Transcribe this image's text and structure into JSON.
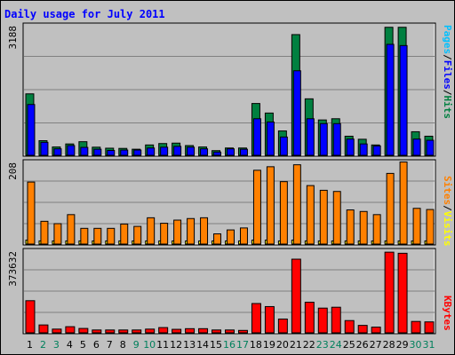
{
  "title": "Daily usage for July 2011",
  "chart_data": [
    {
      "type": "bar",
      "panel": "hits-files-pages",
      "ymax_label": "3188",
      "ylim": [
        0,
        3188
      ],
      "categories": [
        "1",
        "2",
        "3",
        "4",
        "5",
        "6",
        "7",
        "8",
        "9",
        "10",
        "11",
        "12",
        "13",
        "14",
        "15",
        "16",
        "17",
        "18",
        "19",
        "20",
        "21",
        "22",
        "23",
        "24",
        "25",
        "26",
        "27",
        "28",
        "29",
        "30",
        "31"
      ],
      "series": [
        {
          "name": "Hits",
          "color": "#008040",
          "values": [
            1512,
            360,
            205,
            280,
            335,
            200,
            175,
            170,
            150,
            255,
            290,
            300,
            240,
            205,
            115,
            180,
            180,
            1275,
            1040,
            600,
            2970,
            1390,
            870,
            900,
            470,
            395,
            255,
            3150,
            3150,
            580,
            470
          ]
        },
        {
          "name": "Files",
          "color": "#0000ff",
          "values": [
            1250,
            320,
            160,
            240,
            195,
            150,
            120,
            130,
            130,
            180,
            200,
            220,
            200,
            160,
            80,
            160,
            150,
            900,
            820,
            450,
            2080,
            900,
            780,
            780,
            400,
            280,
            230,
            2730,
            2700,
            400,
            370
          ]
        },
        {
          "name": "Pages",
          "color": "#00c0ff",
          "values": [
            0,
            0,
            0,
            0,
            0,
            0,
            0,
            0,
            0,
            0,
            0,
            0,
            0,
            0,
            0,
            0,
            0,
            0,
            0,
            0,
            0,
            0,
            0,
            0,
            0,
            0,
            0,
            0,
            0,
            0,
            0
          ]
        }
      ]
    },
    {
      "type": "bar",
      "panel": "visits-sites",
      "ymax_label": "208",
      "ylim": [
        0,
        208
      ],
      "categories": [
        "1",
        "2",
        "3",
        "4",
        "5",
        "6",
        "7",
        "8",
        "9",
        "10",
        "11",
        "12",
        "13",
        "14",
        "15",
        "16",
        "17",
        "18",
        "19",
        "20",
        "21",
        "22",
        "23",
        "24",
        "25",
        "26",
        "27",
        "28",
        "29",
        "30",
        "31"
      ],
      "series": [
        {
          "name": "Visits",
          "color": "#ffff00",
          "values": [
            10,
            8,
            8,
            8,
            8,
            8,
            8,
            8,
            8,
            8,
            8,
            8,
            8,
            8,
            8,
            8,
            8,
            10,
            10,
            8,
            10,
            8,
            8,
            8,
            8,
            8,
            8,
            8,
            8,
            8,
            8
          ]
        },
        {
          "name": "Sites",
          "color": "#ff8000",
          "values": [
            158,
            58,
            52,
            75,
            40,
            40,
            40,
            51,
            45,
            67,
            53,
            61,
            65,
            67,
            26,
            36,
            41,
            188,
            197,
            159,
            202,
            149,
            137,
            134,
            87,
            83,
            75,
            180,
            209,
            91,
            88
          ]
        }
      ]
    },
    {
      "type": "bar",
      "panel": "kbytes",
      "ymax_label": "373632",
      "ylim": [
        0,
        373632
      ],
      "categories": [
        "1",
        "2",
        "3",
        "4",
        "5",
        "6",
        "7",
        "8",
        "9",
        "10",
        "11",
        "12",
        "13",
        "14",
        "15",
        "16",
        "17",
        "18",
        "19",
        "20",
        "21",
        "22",
        "23",
        "24",
        "25",
        "26",
        "27",
        "28",
        "29",
        "30",
        "31"
      ],
      "series": [
        {
          "name": "KBytes",
          "color": "#ff0000",
          "values": [
            147000,
            36000,
            17000,
            28000,
            20000,
            13000,
            13000,
            13000,
            13000,
            17000,
            24000,
            16000,
            19000,
            19000,
            13000,
            13000,
            11000,
            134000,
            120000,
            63000,
            337000,
            140000,
            113000,
            117000,
            56000,
            34000,
            26000,
            369000,
            364000,
            52000,
            50000
          ]
        }
      ]
    }
  ],
  "legend": {
    "top": [
      {
        "text": "Pages",
        "color": "#00c0ff"
      },
      {
        "text": "/",
        "color": "#000000"
      },
      {
        "text": "Files",
        "color": "#0000ff"
      },
      {
        "text": "/",
        "color": "#000000"
      },
      {
        "text": "Hits",
        "color": "#008040"
      }
    ],
    "middle": [
      {
        "text": "Sites",
        "color": "#ff8000"
      },
      {
        "text": "/",
        "color": "#000000"
      },
      {
        "text": "Visits",
        "color": "#ffff00"
      }
    ],
    "bottom": [
      {
        "text": "KBytes",
        "color": "#ff0000"
      }
    ]
  },
  "weekend_days": [
    2,
    3,
    9,
    10,
    16,
    17,
    23,
    24,
    30,
    31
  ],
  "colors": {
    "weekday": "#000000",
    "weekend": "#00805c",
    "panel": "#c0c0c0",
    "grid": "#808080"
  }
}
